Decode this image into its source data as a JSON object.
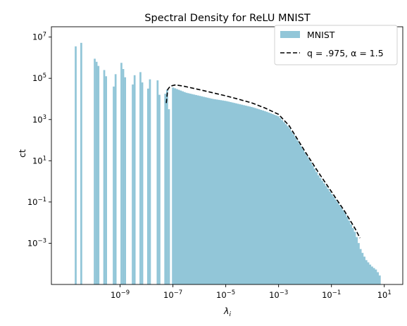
{
  "chart_data": {
    "type": "bar",
    "title": "Spectral Density for ReLU MNIST",
    "xlabel": "λ_i",
    "ylabel": "ct",
    "xscale": "log",
    "yscale": "log",
    "xlim_log10": [
      -11.6,
      1.7
    ],
    "ylim_log10": [
      -5.0,
      7.5
    ],
    "xticks": [
      {
        "exp": -9,
        "label": "10",
        "sup": "−9"
      },
      {
        "exp": -7,
        "label": "10",
        "sup": "−7"
      },
      {
        "exp": -5,
        "label": "10",
        "sup": "−5"
      },
      {
        "exp": -3,
        "label": "10",
        "sup": "−3"
      },
      {
        "exp": -1,
        "label": "10",
        "sup": "−1"
      },
      {
        "exp": 1,
        "label": "10",
        "sup": "1"
      }
    ],
    "yticks": [
      {
        "exp": 7,
        "label": "10",
        "sup": "7"
      },
      {
        "exp": 5,
        "label": "10",
        "sup": "5"
      },
      {
        "exp": 3,
        "label": "10",
        "sup": "3"
      },
      {
        "exp": 1,
        "label": "10",
        "sup": "1"
      },
      {
        "exp": -1,
        "label": "10",
        "sup": "−1"
      },
      {
        "exp": -3,
        "label": "10",
        "sup": "−3"
      }
    ],
    "grid": false,
    "legend_position": "top-right",
    "series": [
      {
        "name": "MNIST",
        "kind": "histogram",
        "color": "#92c6d8",
        "bin_width_log10": 0.0724,
        "bars": [
          [
            -10.68,
            6.55
          ],
          [
            -10.47,
            6.72
          ],
          [
            -9.96,
            5.95
          ],
          [
            -9.89,
            5.8
          ],
          [
            -9.82,
            5.6
          ],
          [
            -9.6,
            5.4
          ],
          [
            -9.53,
            5.1
          ],
          [
            -9.24,
            4.6
          ],
          [
            -9.17,
            5.2
          ],
          [
            -8.95,
            5.75
          ],
          [
            -8.88,
            5.45
          ],
          [
            -8.81,
            5.05
          ],
          [
            -8.52,
            4.7
          ],
          [
            -8.45,
            5.15
          ],
          [
            -8.23,
            5.3
          ],
          [
            -8.16,
            4.8
          ],
          [
            -7.94,
            4.5
          ],
          [
            -7.87,
            4.95
          ],
          [
            -7.58,
            4.9
          ],
          [
            -7.51,
            4.2
          ],
          [
            -7.29,
            4.25
          ],
          [
            -7.22,
            4.45
          ],
          [
            -7.15,
            3.5
          ]
        ],
        "continuum": [
          [
            -7.0,
            4.55
          ],
          [
            -6.5,
            4.3
          ],
          [
            -6.0,
            4.15
          ],
          [
            -5.5,
            4.0
          ],
          [
            -5.0,
            3.9
          ],
          [
            -4.5,
            3.75
          ],
          [
            -4.0,
            3.6
          ],
          [
            -3.5,
            3.4
          ],
          [
            -3.0,
            3.15
          ],
          [
            -2.6,
            2.6
          ],
          [
            -2.0,
            1.4
          ],
          [
            -1.5,
            0.3
          ],
          [
            -1.0,
            -0.6
          ],
          [
            -0.5,
            -1.5
          ],
          [
            -0.1,
            -2.5
          ],
          [
            0.1,
            -3.3
          ],
          [
            0.3,
            -3.8
          ],
          [
            0.5,
            -4.1
          ],
          [
            0.7,
            -4.3
          ],
          [
            0.88,
            -4.7
          ]
        ]
      },
      {
        "name": "q = .975, α = 1.5",
        "kind": "line",
        "color": "#000000",
        "dashed": true,
        "points": [
          [
            -7.25,
            3.8
          ],
          [
            -7.2,
            4.45
          ],
          [
            -7.1,
            4.62
          ],
          [
            -6.9,
            4.68
          ],
          [
            -6.6,
            4.62
          ],
          [
            -6.0,
            4.45
          ],
          [
            -5.5,
            4.3
          ],
          [
            -5.0,
            4.15
          ],
          [
            -4.5,
            3.98
          ],
          [
            -4.0,
            3.8
          ],
          [
            -3.5,
            3.55
          ],
          [
            -3.0,
            3.25
          ],
          [
            -2.6,
            2.7
          ],
          [
            -2.0,
            1.45
          ],
          [
            -1.5,
            0.45
          ],
          [
            -1.0,
            -0.5
          ],
          [
            -0.5,
            -1.45
          ],
          [
            -0.1,
            -2.3
          ],
          [
            0.08,
            -2.75
          ]
        ]
      }
    ]
  }
}
